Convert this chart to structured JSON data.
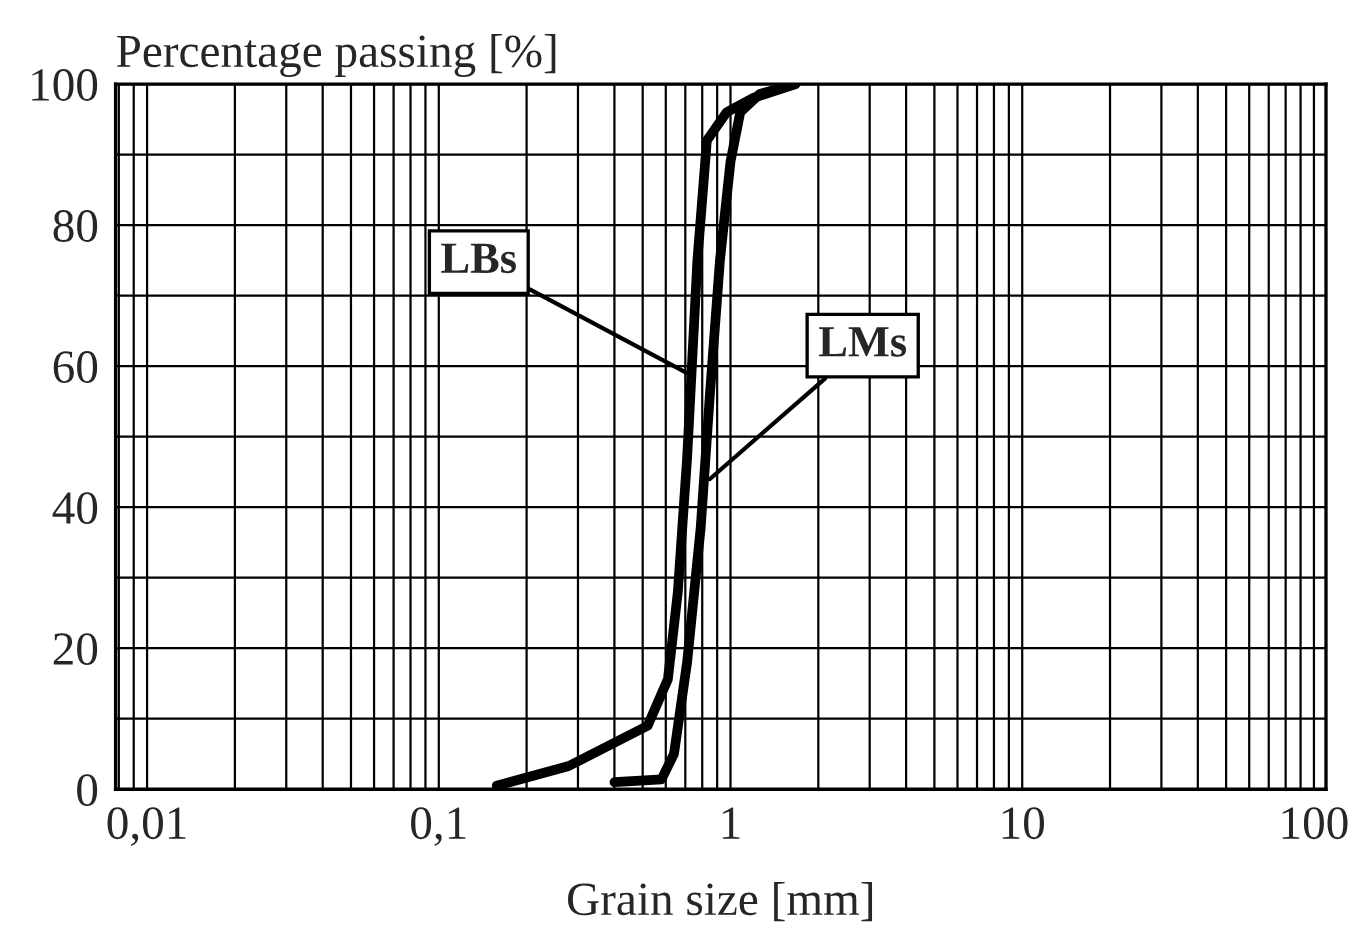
{
  "chart_data": {
    "type": "line",
    "xlabel": "Grain size [mm]",
    "ylabel": "Percentage passing [%]",
    "log": "x",
    "xlim": [
      0.0078,
      110
    ],
    "xticks": [
      {
        "value": 0.01,
        "label": "0,01"
      },
      {
        "value": 0.1,
        "label": "0,1"
      },
      1,
      10,
      100
    ],
    "ylim": [
      0,
      100
    ],
    "yticks": [
      0,
      {
        "value": 10,
        "label": null
      },
      20,
      {
        "value": 30,
        "label": null
      },
      40,
      {
        "value": 50,
        "label": null
      },
      60,
      {
        "value": 70,
        "label": null
      },
      80,
      {
        "value": 90,
        "label": null
      },
      100
    ],
    "grid": true,
    "line_style": "solid",
    "series": [
      {
        "color": "#000000",
        "x": [
          0.158,
          0.279,
          0.52,
          0.61,
          0.66,
          0.71,
          0.77,
          0.83,
          0.97,
          1.19,
          1.67
        ],
        "values": [
          0.5,
          3.3,
          9,
          15.6,
          28,
          47,
          75,
          92,
          96,
          98,
          100
        ]
      },
      {
        "color": "#000000",
        "x": [
          0.4,
          0.58,
          0.64,
          0.71,
          0.79,
          0.85,
          0.92,
          1.0,
          1.08,
          1.26,
          1.67
        ],
        "values": [
          1,
          1.4,
          5,
          18,
          37,
          56,
          75,
          89,
          96,
          98.6,
          100
        ]
      }
    ],
    "annotations": [
      {
        "text": "LBs",
        "x": 0.71,
        "y": 59
      },
      {
        "text": "LMs",
        "x": 0.85,
        "y": 44
      }
    ]
  }
}
